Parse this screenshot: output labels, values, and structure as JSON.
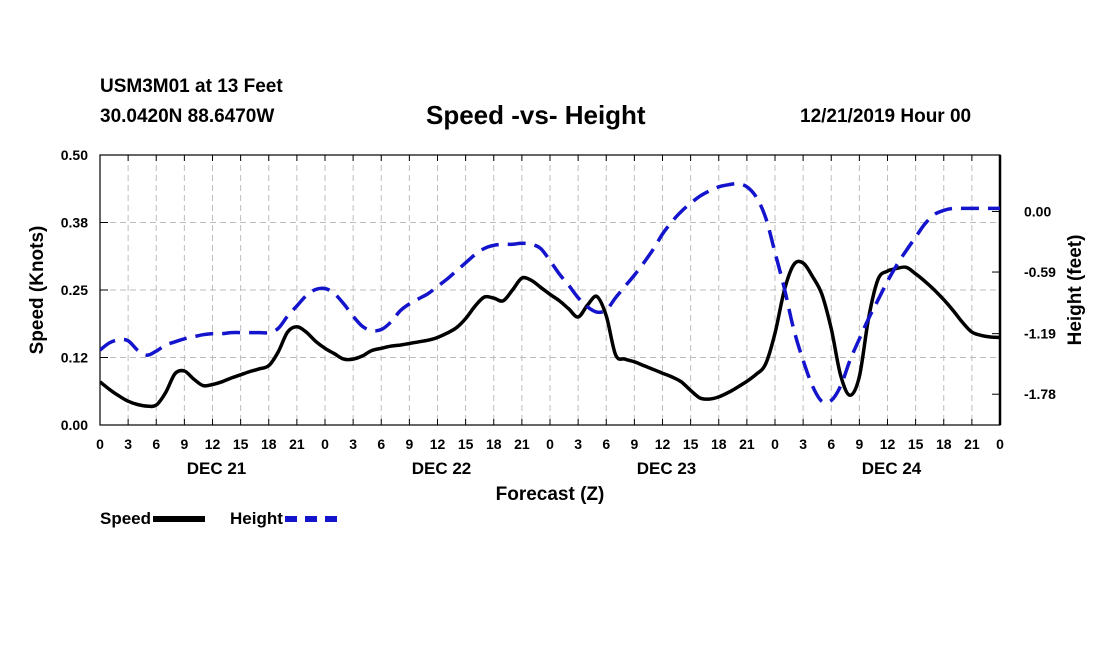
{
  "header": {
    "station": "USM3M01 at 13 Feet",
    "coords": "30.0420N 88.6470W",
    "title": "Speed -vs- Height",
    "date": "12/21/2019 Hour 00"
  },
  "legend": {
    "speed_label": "Speed",
    "height_label": "Height"
  },
  "colors": {
    "speed": "#000000",
    "height": "#1414cc",
    "grid": "#bdbdbd"
  },
  "chart_data": {
    "type": "line",
    "title": "Speed -vs- Height",
    "xlabel": "Forecast (Z)",
    "ylabel": "Speed (Knots)",
    "y2label": "Height (feet)",
    "xlim": [
      0,
      96
    ],
    "ylim": [
      0,
      0.5
    ],
    "y2lim": [
      -2.08,
      0.55
    ],
    "yticks": [
      "0.00",
      "0.12",
      "0.25",
      "0.38",
      "0.50"
    ],
    "yticks_values": [
      0,
      0.125,
      0.25,
      0.375,
      0.5
    ],
    "y2ticks": [
      "0.00",
      "-0.59",
      "-1.19",
      "-1.78"
    ],
    "y2ticks_values": [
      0.0,
      -0.59,
      -1.19,
      -1.78
    ],
    "xticks": [
      "0",
      "3",
      "6",
      "9",
      "12",
      "15",
      "18",
      "21",
      "0",
      "3",
      "6",
      "9",
      "12",
      "15",
      "18",
      "21",
      "0",
      "3",
      "6",
      "9",
      "12",
      "15",
      "18",
      "21",
      "0",
      "3",
      "6",
      "9",
      "12",
      "15",
      "18",
      "21",
      "0"
    ],
    "day_labels": [
      {
        "label": "DEC 21",
        "x": 12
      },
      {
        "label": "DEC 22",
        "x": 36
      },
      {
        "label": "DEC 23",
        "x": 60
      },
      {
        "label": "DEC 24",
        "x": 84
      }
    ],
    "grid": true,
    "series": [
      {
        "name": "Speed",
        "axis": "left",
        "style": "solid",
        "x": [
          0,
          1,
          2,
          3,
          4,
          5,
          6,
          7,
          8,
          9,
          10,
          11,
          12,
          13,
          14,
          15,
          16,
          17,
          18,
          19,
          20,
          21,
          22,
          23,
          24,
          25,
          26,
          27,
          28,
          29,
          30,
          31,
          32,
          33,
          34,
          35,
          36,
          37,
          38,
          39,
          40,
          41,
          42,
          43,
          44,
          45,
          46,
          47,
          48,
          49,
          50,
          51,
          52,
          53,
          54,
          55,
          56,
          57,
          58,
          59,
          60,
          61,
          62,
          63,
          64,
          65,
          66,
          67,
          68,
          69,
          70,
          71,
          72,
          73,
          74,
          75,
          76,
          77,
          78,
          79,
          80,
          81,
          82,
          83,
          84,
          85,
          86,
          87,
          88,
          89,
          90,
          91,
          92,
          93,
          94,
          95,
          96
        ],
        "values": [
          0.08,
          0.066,
          0.054,
          0.044,
          0.038,
          0.035,
          0.037,
          0.06,
          0.095,
          0.1,
          0.085,
          0.073,
          0.075,
          0.08,
          0.087,
          0.093,
          0.099,
          0.104,
          0.11,
          0.135,
          0.172,
          0.182,
          0.172,
          0.155,
          0.142,
          0.132,
          0.122,
          0.122,
          0.128,
          0.138,
          0.142,
          0.146,
          0.148,
          0.151,
          0.154,
          0.157,
          0.162,
          0.17,
          0.18,
          0.197,
          0.22,
          0.237,
          0.235,
          0.23,
          0.25,
          0.272,
          0.268,
          0.255,
          0.242,
          0.23,
          0.215,
          0.2,
          0.222,
          0.238,
          0.202,
          0.13,
          0.122,
          0.117,
          0.11,
          0.103,
          0.096,
          0.089,
          0.08,
          0.064,
          0.05,
          0.048,
          0.052,
          0.06,
          0.07,
          0.081,
          0.094,
          0.113,
          0.17,
          0.25,
          0.297,
          0.3,
          0.275,
          0.242,
          0.178,
          0.092,
          0.055,
          0.09,
          0.2,
          0.27,
          0.285,
          0.29,
          0.292,
          0.28,
          0.266,
          0.25,
          0.232,
          0.212,
          0.19,
          0.172,
          0.166,
          0.163,
          0.162
        ]
      },
      {
        "name": "Height",
        "axis": "right",
        "style": "dashed",
        "x": [
          0,
          1,
          2,
          3,
          4,
          5,
          6,
          7,
          8,
          9,
          10,
          11,
          12,
          13,
          14,
          15,
          16,
          17,
          18,
          19,
          20,
          21,
          22,
          23,
          24,
          25,
          26,
          27,
          28,
          29,
          30,
          31,
          32,
          33,
          34,
          35,
          36,
          37,
          38,
          39,
          40,
          41,
          42,
          43,
          44,
          45,
          46,
          47,
          48,
          49,
          50,
          51,
          52,
          53,
          54,
          55,
          56,
          57,
          58,
          59,
          60,
          61,
          62,
          63,
          64,
          65,
          66,
          67,
          68,
          69,
          70,
          71,
          72,
          73,
          74,
          75,
          76,
          77,
          78,
          79,
          80,
          81,
          82,
          83,
          84,
          85,
          86,
          87,
          88,
          89,
          90,
          91,
          92,
          93,
          94,
          95,
          96
        ],
        "values": [
          -1.35,
          -1.28,
          -1.25,
          -1.26,
          -1.35,
          -1.4,
          -1.36,
          -1.3,
          -1.27,
          -1.24,
          -1.22,
          -1.2,
          -1.19,
          -1.19,
          -1.18,
          -1.18,
          -1.18,
          -1.18,
          -1.18,
          -1.14,
          -1.02,
          -0.92,
          -0.82,
          -0.76,
          -0.75,
          -0.8,
          -0.9,
          -1.02,
          -1.12,
          -1.16,
          -1.15,
          -1.08,
          -0.97,
          -0.9,
          -0.85,
          -0.8,
          -0.73,
          -0.66,
          -0.58,
          -0.5,
          -0.42,
          -0.36,
          -0.33,
          -0.32,
          -0.32,
          -0.31,
          -0.32,
          -0.36,
          -0.48,
          -0.61,
          -0.72,
          -0.84,
          -0.93,
          -0.98,
          -0.96,
          -0.84,
          -0.73,
          -0.62,
          -0.5,
          -0.37,
          -0.22,
          -0.1,
          0.0,
          0.08,
          0.15,
          0.2,
          0.24,
          0.26,
          0.27,
          0.24,
          0.14,
          -0.06,
          -0.4,
          -0.75,
          -1.15,
          -1.45,
          -1.7,
          -1.85,
          -1.84,
          -1.7,
          -1.45,
          -1.24,
          -1.04,
          -0.86,
          -0.68,
          -0.52,
          -0.38,
          -0.25,
          -0.12,
          -0.03,
          0.01,
          0.03,
          0.03,
          0.03,
          0.03,
          0.03,
          0.03
        ]
      }
    ]
  }
}
